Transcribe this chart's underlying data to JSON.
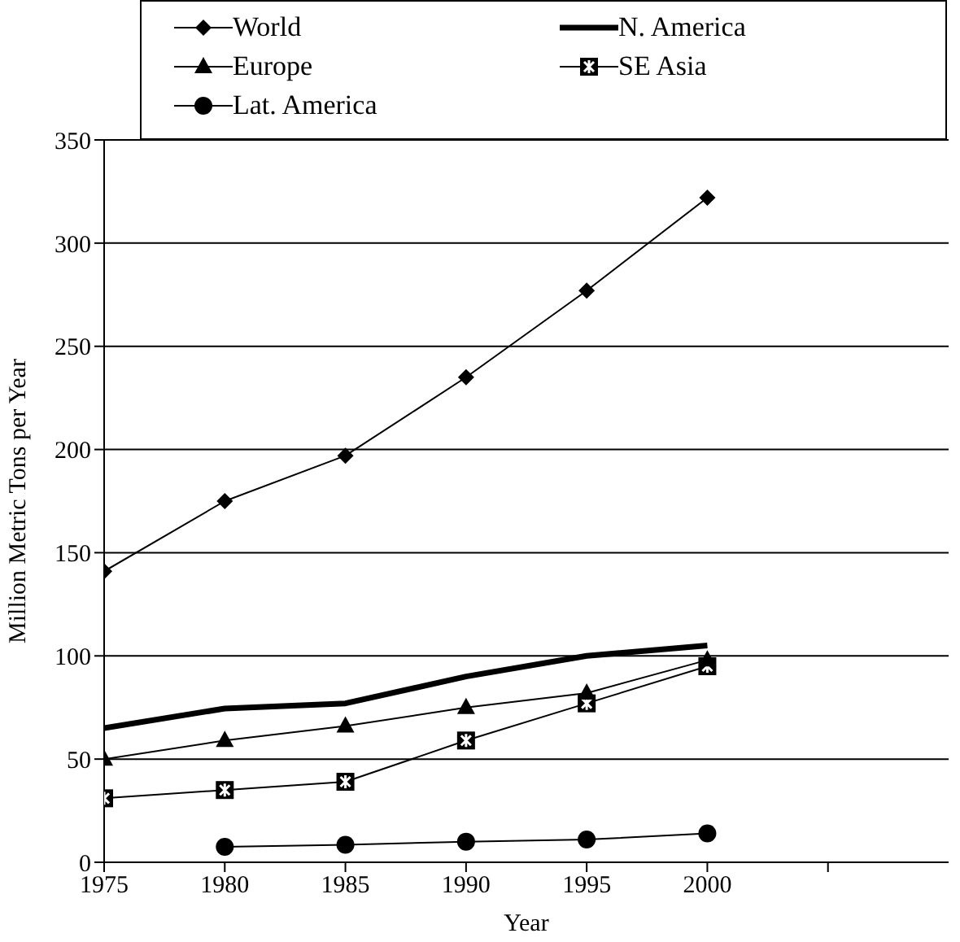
{
  "chart_data": {
    "type": "line",
    "xlabel": "Year",
    "ylabel": "Million Metric Tons per Year",
    "x": [
      1975,
      1980,
      1985,
      1990,
      1995,
      2000
    ],
    "series": [
      {
        "name": "World",
        "color": "#000000",
        "marker": "diamond",
        "values": [
          141,
          175,
          197,
          235,
          277,
          322
        ]
      },
      {
        "name": "N. America",
        "color": "#000000",
        "marker": "none",
        "values": [
          65,
          74.5,
          77,
          90,
          100,
          105
        ]
      },
      {
        "name": "Europe",
        "color": "#000000",
        "marker": "triangle",
        "values": [
          50,
          59,
          66,
          75,
          82,
          98
        ]
      },
      {
        "name": "SE Asia",
        "color": "#000000",
        "marker": "square",
        "values": [
          31,
          35,
          39,
          59,
          77,
          95
        ]
      },
      {
        "name": "Lat. America",
        "color": "#000000",
        "marker": "circle",
        "values": [
          null,
          7.5,
          8.5,
          10,
          11,
          14
        ]
      }
    ],
    "xlim": [
      1975,
      2010
    ],
    "xticks": [
      1975,
      1980,
      1985,
      1990,
      1995,
      2000,
      {
        "value": 2005,
        "label": null
      }
    ],
    "ylim": [
      0,
      350
    ],
    "yticks": [
      0,
      50,
      100,
      150,
      200,
      250,
      300,
      350
    ],
    "grid": "y",
    "legend": "top"
  }
}
